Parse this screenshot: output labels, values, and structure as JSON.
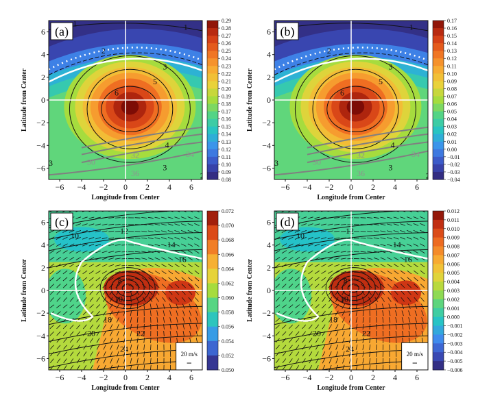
{
  "chart_data": [
    {
      "type": "heatmap",
      "panel_label": "(a)",
      "xlabel": "Longitude from Center",
      "ylabel": "Latitude from Center",
      "xlim": [
        -7,
        7
      ],
      "ylim": [
        -7,
        7
      ],
      "xticks": [
        -6,
        -4,
        -2,
        0,
        2,
        4,
        6
      ],
      "yticks": [
        -6,
        -4,
        -2,
        0,
        2,
        4,
        6
      ],
      "colorbar": {
        "min": 0.08,
        "max": 0.29,
        "ticks": [
          "0.29",
          "0.28",
          "0.27",
          "0.26",
          "0.25",
          "0.24",
          "0.23",
          "0.22",
          "0.21",
          "0.20",
          "0.19",
          "0.18",
          "0.17",
          "0.16",
          "0.15",
          "0.14",
          "0.13",
          "0.12",
          "0.11",
          "0.10",
          "0.09",
          "0.08"
        ]
      },
      "field_max": {
        "x": 0.5,
        "y": -0.5
      },
      "black_contour_labels": [
        "1",
        "1",
        "2",
        "3",
        "5",
        "6",
        "4",
        "3",
        "3",
        "2"
      ],
      "gray_contour_labels": [
        "30",
        "32",
        "34",
        "36"
      ]
    },
    {
      "type": "heatmap",
      "panel_label": "(b)",
      "xlabel": "Longitude from Center",
      "ylabel": "Latitude from Center",
      "xlim": [
        -7,
        7
      ],
      "ylim": [
        -7,
        7
      ],
      "xticks": [
        -6,
        -4,
        -2,
        0,
        2,
        4,
        6
      ],
      "yticks": [
        -6,
        -4,
        -2,
        0,
        2,
        4,
        6
      ],
      "colorbar": {
        "min": -0.04,
        "max": 0.17,
        "ticks": [
          "0.17",
          "0.16",
          "0.15",
          "0.14",
          "0.13",
          "0.12",
          "0.11",
          "0.10",
          "0.09",
          "0.08",
          "0.07",
          "0.06",
          "0.05",
          "0.04",
          "0.03",
          "0.02",
          "0.01",
          "0.00",
          "-0.01",
          "-0.02",
          "-0.03",
          "-0.04"
        ]
      },
      "field_max": {
        "x": 0.5,
        "y": -0.5
      },
      "black_contour_labels": [
        "1",
        "2",
        "3",
        "5",
        "6",
        "4",
        "3",
        "3",
        "2"
      ],
      "gray_contour_labels": [
        "30",
        "32",
        "34",
        "36"
      ]
    },
    {
      "type": "heatmap",
      "panel_label": "(c)",
      "xlabel": "Longitude from Center",
      "ylabel": "Latitude from Center",
      "xlim": [
        -7,
        7
      ],
      "ylim": [
        -7,
        7
      ],
      "xticks": [
        -6,
        -4,
        -2,
        0,
        2,
        4,
        6
      ],
      "yticks": [
        -6,
        -4,
        -2,
        0,
        2,
        4,
        6
      ],
      "colorbar": {
        "min": 0.05,
        "max": 0.072,
        "ticks": [
          "0.072",
          "0.070",
          "0.068",
          "0.066",
          "0.064",
          "0.062",
          "0.060",
          "0.058",
          "0.056",
          "0.054",
          "0.052",
          "0.050"
        ]
      },
      "field_max": {
        "x": 0.5,
        "y": 0.3
      },
      "black_contour_labels": [
        "10",
        "12",
        "14",
        "16",
        "8",
        "10",
        "18",
        "20",
        "22",
        "24"
      ],
      "wind_legend": "20 m/s"
    },
    {
      "type": "heatmap",
      "panel_label": "(d)",
      "xlabel": "Longitude from Center",
      "ylabel": "Latitude from Center",
      "xlim": [
        -7,
        7
      ],
      "ylim": [
        -7,
        7
      ],
      "xticks": [
        -6,
        -4,
        -2,
        0,
        2,
        4,
        6
      ],
      "yticks": [
        -6,
        -4,
        -2,
        0,
        2,
        4,
        6
      ],
      "colorbar": {
        "min": -0.006,
        "max": 0.012,
        "ticks": [
          "0.012",
          "0.011",
          "0.010",
          "0.009",
          "0.008",
          "0.007",
          "0.006",
          "0.005",
          "0.004",
          "0.003",
          "0.002",
          "0.001",
          "0.000",
          "-0.001",
          "-0.002",
          "-0.003",
          "-0.004",
          "-0.005",
          "-0.006"
        ]
      },
      "field_max": {
        "x": 0.5,
        "y": 0.3
      },
      "black_contour_labels": [
        "10",
        "12",
        "14",
        "16",
        "8",
        "10",
        "18",
        "20",
        "22",
        "24"
      ],
      "wind_legend": "20 m/s"
    }
  ],
  "colors": {
    "palette": [
      "#30226e",
      "#3b4fc0",
      "#3f8ef0",
      "#25c2c8",
      "#4fd48a",
      "#a6dc3e",
      "#ecd23a",
      "#f8a832",
      "#ef6e22",
      "#cf3614",
      "#7d0c06"
    ],
    "lines": "#111111",
    "gray_lines": "#808080",
    "cross": "#ffffff"
  }
}
